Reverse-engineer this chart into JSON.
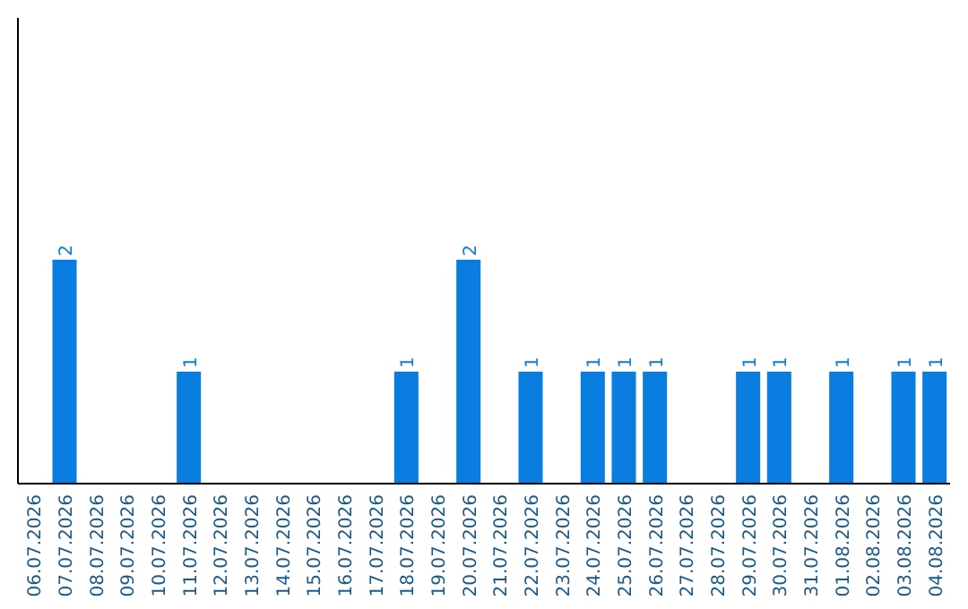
{
  "chart_data": {
    "type": "bar",
    "categories": [
      "06.07.2026",
      "07.07.2026",
      "08.07.2026",
      "09.07.2026",
      "10.07.2026",
      "11.07.2026",
      "12.07.2026",
      "13.07.2026",
      "14.07.2026",
      "15.07.2026",
      "16.07.2026",
      "17.07.2026",
      "18.07.2026",
      "19.07.2026",
      "20.07.2026",
      "21.07.2026",
      "22.07.2026",
      "23.07.2026",
      "24.07.2026",
      "25.07.2026",
      "26.07.2026",
      "27.07.2026",
      "28.07.2026",
      "29.07.2026",
      "30.07.2026",
      "31.07.2026",
      "01.08.2026",
      "02.08.2026",
      "03.08.2026",
      "04.08.2026"
    ],
    "values": [
      0,
      2,
      0,
      0,
      0,
      1,
      0,
      0,
      0,
      0,
      0,
      0,
      1,
      0,
      2,
      0,
      1,
      0,
      1,
      1,
      1,
      0,
      0,
      1,
      1,
      0,
      1,
      0,
      1,
      1
    ],
    "value_labels": [
      null,
      "2",
      null,
      null,
      null,
      "1",
      null,
      null,
      null,
      null,
      null,
      null,
      "1",
      null,
      "2",
      null,
      "1",
      null,
      "1",
      "1",
      "1",
      null,
      null,
      "1",
      "1",
      null,
      "1",
      null,
      "1",
      "1"
    ],
    "color": "#0a7ee0"
  }
}
